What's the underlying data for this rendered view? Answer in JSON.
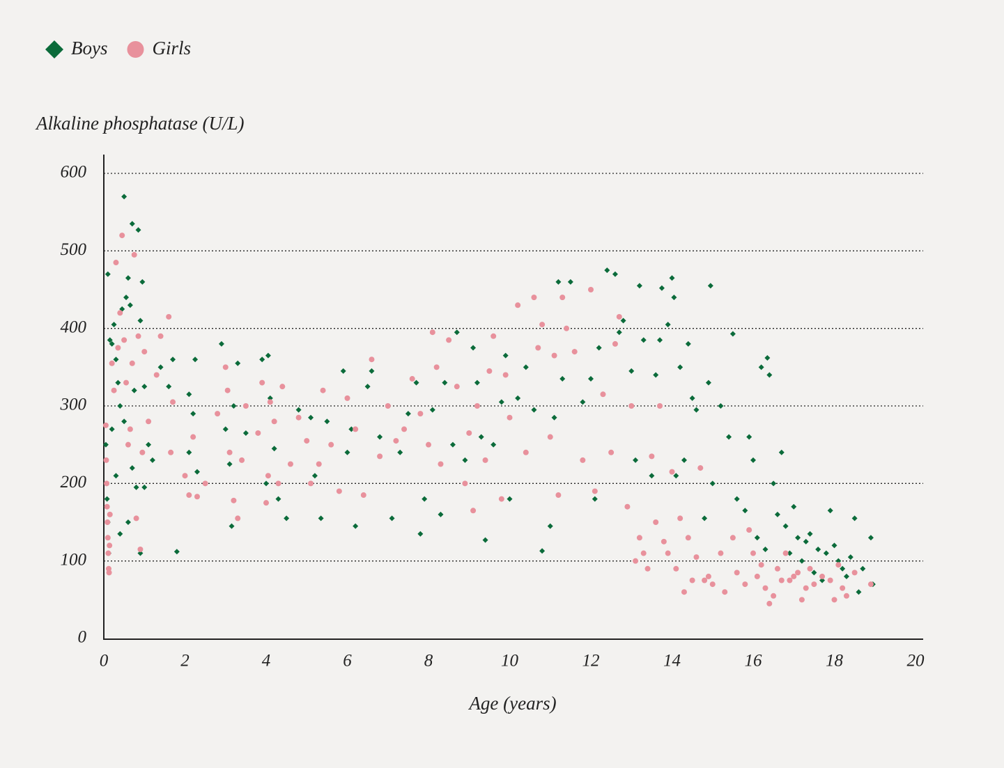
{
  "chart_data": {
    "type": "scatter",
    "y_label": "Alkaline phosphatase (U/L)",
    "x_label": "Age (years)",
    "xlim": [
      0,
      20
    ],
    "xticks": [
      0,
      2,
      4,
      6,
      8,
      10,
      12,
      14,
      16,
      18,
      20
    ],
    "ylim": [
      0,
      600
    ],
    "yticks": [
      0,
      100,
      200,
      300,
      400,
      500,
      600
    ],
    "grid": true,
    "legend": "top-left",
    "series": [
      {
        "name": "Boys",
        "color": "#0b6b3a",
        "marker": "diamond",
        "x": [
          0.1,
          0.15,
          0.2,
          0.25,
          0.3,
          0.35,
          0.4,
          0.45,
          0.5,
          0.55,
          0.6,
          0.65,
          0.7,
          0.75,
          0.85,
          0.9,
          0.95,
          0.05,
          0.08,
          0.1,
          0.12,
          0.2,
          0.3,
          0.4,
          0.5,
          0.6,
          0.7,
          0.8,
          0.9,
          1.0,
          1.0,
          1.1,
          1.2,
          1.4,
          1.6,
          1.7,
          1.8,
          2.1,
          2.1,
          2.2,
          2.25,
          2.3,
          2.9,
          3.0,
          3.1,
          3.15,
          3.2,
          3.3,
          3.5,
          3.9,
          4.0,
          4.05,
          4.1,
          4.2,
          4.3,
          4.5,
          4.8,
          5.1,
          5.2,
          5.35,
          5.5,
          5.9,
          6.0,
          6.1,
          6.2,
          6.5,
          6.6,
          6.8,
          7.0,
          7.1,
          7.3,
          7.5,
          7.7,
          7.8,
          7.9,
          8.1,
          8.3,
          8.4,
          8.6,
          8.7,
          8.9,
          9.1,
          9.2,
          9.3,
          9.4,
          9.6,
          9.8,
          9.9,
          10.0,
          10.2,
          10.4,
          10.6,
          10.8,
          11.0,
          11.1,
          11.2,
          11.3,
          11.5,
          11.6,
          11.8,
          12.0,
          12.1,
          12.2,
          12.4,
          12.6,
          12.7,
          12.8,
          13.0,
          13.1,
          13.2,
          13.3,
          13.5,
          13.6,
          13.7,
          13.75,
          13.9,
          14.0,
          14.05,
          14.1,
          14.2,
          14.3,
          14.4,
          14.5,
          14.6,
          14.7,
          14.8,
          14.9,
          14.95,
          15.0,
          15.2,
          15.4,
          15.5,
          15.6,
          15.8,
          15.9,
          16.0,
          16.1,
          16.2,
          16.3,
          16.35,
          16.4,
          16.5,
          16.6,
          16.7,
          16.8,
          16.9,
          17.0,
          17.1,
          17.2,
          17.3,
          17.4,
          17.5,
          17.6,
          17.7,
          17.8,
          17.9,
          18.0,
          18.1,
          18.2,
          18.3,
          18.4,
          18.5,
          18.6,
          18.7,
          18.9,
          18.95
        ],
        "values": [
          470,
          385,
          380,
          405,
          360,
          330,
          300,
          425,
          570,
          440,
          465,
          430,
          535,
          320,
          527,
          410,
          460,
          250,
          180,
          150,
          110,
          270,
          210,
          135,
          280,
          150,
          220,
          195,
          110,
          325,
          195,
          250,
          230,
          350,
          325,
          360,
          112,
          315,
          240,
          290,
          360,
          215,
          380,
          270,
          225,
          145,
          300,
          355,
          265,
          360,
          200,
          365,
          310,
          245,
          180,
          155,
          295,
          285,
          210,
          155,
          280,
          345,
          240,
          270,
          145,
          325,
          345,
          260,
          300,
          155,
          240,
          290,
          330,
          135,
          180,
          295,
          160,
          330,
          250,
          395,
          230,
          375,
          330,
          260,
          127,
          250,
          305,
          365,
          180,
          310,
          350,
          295,
          113,
          145,
          285,
          460,
          335,
          460,
          370,
          305,
          335,
          180,
          375,
          475,
          470,
          395,
          410,
          345,
          230,
          455,
          385,
          210,
          340,
          385,
          452,
          405,
          465,
          440,
          210,
          350,
          230,
          380,
          310,
          295,
          220,
          155,
          330,
          455,
          200,
          300,
          260,
          393,
          180,
          165,
          260,
          230,
          130,
          350,
          115,
          362,
          340,
          200,
          160,
          240,
          145,
          110,
          170,
          130,
          100,
          125,
          135,
          85,
          115,
          75,
          110,
          165,
          120,
          100,
          90,
          80,
          105,
          155,
          60,
          90,
          130,
          70
        ]
      },
      {
        "name": "Girls",
        "color": "#e8919c",
        "marker": "circle",
        "x": [
          0.05,
          0.06,
          0.07,
          0.08,
          0.09,
          0.1,
          0.11,
          0.12,
          0.13,
          0.14,
          0.15,
          0.2,
          0.25,
          0.3,
          0.35,
          0.4,
          0.45,
          0.5,
          0.55,
          0.6,
          0.65,
          0.7,
          0.75,
          0.8,
          0.85,
          0.9,
          0.95,
          1.0,
          1.1,
          1.3,
          1.4,
          1.6,
          1.65,
          1.7,
          2.0,
          2.1,
          2.2,
          2.3,
          2.5,
          2.8,
          3.0,
          3.05,
          3.1,
          3.2,
          3.3,
          3.4,
          3.5,
          3.8,
          3.9,
          4.0,
          4.05,
          4.1,
          4.2,
          4.3,
          4.4,
          4.6,
          4.8,
          5.0,
          5.1,
          5.3,
          5.4,
          5.6,
          5.8,
          6.0,
          6.2,
          6.4,
          6.6,
          6.8,
          7.0,
          7.2,
          7.4,
          7.6,
          7.8,
          8.0,
          8.1,
          8.2,
          8.3,
          8.5,
          8.7,
          8.9,
          9.0,
          9.1,
          9.2,
          9.4,
          9.5,
          9.6,
          9.8,
          9.9,
          10.0,
          10.2,
          10.4,
          10.6,
          10.7,
          10.8,
          11.0,
          11.1,
          11.2,
          11.3,
          11.4,
          11.6,
          11.8,
          12.0,
          12.1,
          12.3,
          12.5,
          12.6,
          12.7,
          12.9,
          13.0,
          13.1,
          13.2,
          13.3,
          13.4,
          13.5,
          13.6,
          13.7,
          13.8,
          13.9,
          14.0,
          14.1,
          14.2,
          14.3,
          14.4,
          14.5,
          14.6,
          14.7,
          14.8,
          14.9,
          15.0,
          15.2,
          15.3,
          15.5,
          15.6,
          15.8,
          15.9,
          16.0,
          16.1,
          16.2,
          16.3,
          16.4,
          16.5,
          16.6,
          16.7,
          16.8,
          16.9,
          17.0,
          17.1,
          17.2,
          17.3,
          17.4,
          17.5,
          17.7,
          17.9,
          18.0,
          18.1,
          18.2,
          18.3,
          18.5,
          18.9
        ],
        "values": [
          275,
          230,
          200,
          170,
          150,
          130,
          110,
          90,
          85,
          120,
          160,
          355,
          320,
          485,
          375,
          420,
          520,
          385,
          330,
          250,
          270,
          355,
          495,
          155,
          390,
          115,
          240,
          370,
          280,
          340,
          390,
          415,
          240,
          305,
          210,
          185,
          260,
          183,
          200,
          290,
          350,
          320,
          240,
          178,
          155,
          230,
          300,
          265,
          330,
          175,
          210,
          305,
          280,
          200,
          325,
          225,
          285,
          255,
          200,
          225,
          320,
          250,
          190,
          310,
          270,
          185,
          360,
          235,
          300,
          255,
          270,
          335,
          290,
          250,
          395,
          350,
          225,
          385,
          325,
          200,
          265,
          165,
          300,
          230,
          345,
          390,
          180,
          340,
          285,
          430,
          240,
          440,
          375,
          405,
          260,
          365,
          185,
          440,
          400,
          370,
          230,
          450,
          190,
          315,
          240,
          380,
          415,
          170,
          300,
          100,
          130,
          110,
          90,
          235,
          150,
          300,
          125,
          110,
          215,
          90,
          155,
          60,
          130,
          75,
          105,
          220,
          75,
          80,
          70,
          110,
          60,
          130,
          85,
          70,
          140,
          110,
          80,
          95,
          65,
          45,
          55,
          90,
          75,
          110,
          75,
          80,
          85,
          50,
          65,
          90,
          70,
          80,
          75,
          50,
          95,
          65,
          55,
          85,
          70
        ]
      }
    ]
  }
}
